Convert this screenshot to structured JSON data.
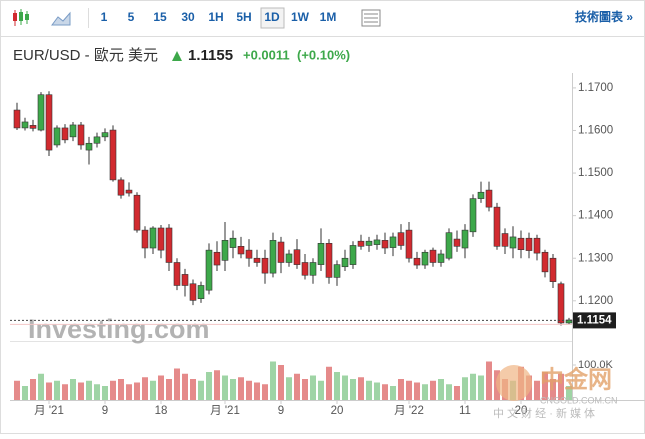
{
  "toolbar": {
    "buttons": [
      "1",
      "5",
      "15",
      "30",
      "1H",
      "5H",
      "1D",
      "1W",
      "1M"
    ],
    "selected": "1D",
    "link": "技術圖表 »"
  },
  "header": {
    "symbol": "EUR/USD - 歐元 美元",
    "price": "1.1155",
    "change": "+0.0011",
    "change_pct": "(+0.10%)"
  },
  "watermarks": {
    "investing": "Investing.com",
    "cngold": "中金网",
    "cngold_site": "CNGOLD.COM.CN",
    "cngold_slogan": "中 文 财 经 · 新 媒 体"
  },
  "chart_data": {
    "type": "candlestick",
    "categories": [
      null,
      null,
      null,
      null,
      "月 '21",
      null,
      null,
      null,
      null,
      null,
      null,
      "9",
      null,
      null,
      null,
      null,
      null,
      null,
      "18",
      null,
      null,
      null,
      null,
      null,
      null,
      null,
      "月 '21",
      null,
      null,
      null,
      null,
      null,
      null,
      "9",
      null,
      null,
      null,
      null,
      null,
      null,
      "20",
      null,
      null,
      null,
      null,
      null,
      null,
      null,
      null,
      "月 '22",
      null,
      null,
      null,
      null,
      null,
      null,
      "11",
      null,
      null,
      null,
      null,
      null,
      null,
      "20",
      null,
      null,
      null,
      null,
      null,
      null
    ],
    "open": [
      1.1648,
      1.1606,
      1.1612,
      1.1601,
      1.1684,
      1.1566,
      1.1606,
      1.1585,
      1.1613,
      1.1554,
      1.157,
      1.1585,
      1.1601,
      1.1484,
      1.146,
      1.1448,
      1.1366,
      1.1324,
      1.1371,
      1.1371,
      1.129,
      1.1262,
      1.124,
      1.1205,
      1.1225,
      1.1314,
      1.1295,
      1.1325,
      1.1328,
      1.1319,
      1.13,
      1.13,
      1.1265,
      1.1338,
      1.129,
      1.132,
      1.129,
      1.126,
      1.1285,
      1.1335,
      1.1255,
      1.128,
      1.1285,
      1.134,
      1.133,
      1.1332,
      1.1342,
      1.1325,
      1.136,
      1.1366,
      1.13,
      1.1284,
      1.1319,
      1.129,
      1.13,
      1.1345,
      1.1324,
      1.1362,
      1.144,
      1.146,
      1.142,
      1.1358,
      1.1324,
      1.1347,
      1.1347,
      1.1347,
      1.1314,
      1.13,
      1.124,
      1.1148
    ],
    "high": [
      1.1665,
      1.163,
      1.1625,
      1.169,
      1.1692,
      1.1612,
      1.1615,
      1.162,
      1.162,
      1.1585,
      1.1595,
      1.1605,
      1.1612,
      1.149,
      1.1478,
      1.1455,
      1.1375,
      1.1375,
      1.1378,
      1.138,
      1.13,
      1.1275,
      1.125,
      1.1245,
      1.1335,
      1.134,
      1.1385,
      1.1365,
      1.135,
      1.1345,
      1.132,
      1.132,
      1.136,
      1.135,
      1.132,
      1.1345,
      1.131,
      1.13,
      1.137,
      1.1345,
      1.1295,
      1.132,
      1.134,
      1.1355,
      1.135,
      1.1355,
      1.136,
      1.136,
      1.138,
      1.1385,
      1.1315,
      1.132,
      1.1325,
      1.132,
      1.137,
      1.1365,
      1.138,
      1.145,
      1.148,
      1.148,
      1.143,
      1.137,
      1.1375,
      1.1365,
      1.136,
      1.1355,
      1.132,
      1.131,
      1.1245,
      1.116
    ],
    "low": [
      1.1601,
      1.16,
      1.1598,
      1.1598,
      1.154,
      1.156,
      1.157,
      1.1575,
      1.1555,
      1.152,
      1.156,
      1.1575,
      1.148,
      1.144,
      1.1445,
      1.136,
      1.13,
      1.131,
      1.13,
      1.127,
      1.1225,
      1.121,
      1.119,
      1.1195,
      1.1215,
      1.127,
      1.127,
      1.13,
      1.13,
      1.128,
      1.128,
      1.124,
      1.1255,
      1.1265,
      1.128,
      1.1275,
      1.125,
      1.124,
      1.127,
      1.124,
      1.1235,
      1.127,
      1.1275,
      1.132,
      1.1315,
      1.132,
      1.131,
      1.1305,
      1.132,
      1.129,
      1.1275,
      1.1275,
      1.128,
      1.128,
      1.1295,
      1.1315,
      1.13,
      1.135,
      1.143,
      1.141,
      1.132,
      1.131,
      1.13,
      1.13,
      1.13,
      1.1295,
      1.1255,
      1.123,
      1.1142,
      1.1145
    ],
    "close": [
      1.1606,
      1.162,
      1.1605,
      1.1684,
      1.1554,
      1.1606,
      1.1578,
      1.1613,
      1.1566,
      1.157,
      1.1585,
      1.1595,
      1.1484,
      1.1448,
      1.1453,
      1.1366,
      1.1324,
      1.1371,
      1.1319,
      1.129,
      1.1236,
      1.1236,
      1.1201,
      1.1236,
      1.1319,
      1.1284,
      1.1342,
      1.1347,
      1.131,
      1.13,
      1.129,
      1.1265,
      1.1342,
      1.129,
      1.131,
      1.1285,
      1.126,
      1.129,
      1.1335,
      1.1255,
      1.1285,
      1.13,
      1.133,
      1.1328,
      1.134,
      1.1343,
      1.1324,
      1.135,
      1.133,
      1.13,
      1.1284,
      1.1314,
      1.129,
      1.131,
      1.136,
      1.1328,
      1.1366,
      1.144,
      1.1455,
      1.142,
      1.1328,
      1.1328,
      1.135,
      1.132,
      1.1318,
      1.1312,
      1.1268,
      1.1245,
      1.1148,
      1.1155
    ],
    "volume": [
      55000,
      40000,
      60000,
      75000,
      50000,
      55000,
      45000,
      60000,
      50000,
      55000,
      45000,
      40000,
      55000,
      60000,
      45000,
      50000,
      65000,
      55000,
      70000,
      60000,
      90000,
      75000,
      60000,
      55000,
      80000,
      85000,
      70000,
      60000,
      65000,
      55000,
      50000,
      45000,
      110000,
      100000,
      65000,
      75000,
      60000,
      70000,
      55000,
      95000,
      80000,
      70000,
      60000,
      65000,
      55000,
      50000,
      45000,
      40000,
      60000,
      55000,
      50000,
      45000,
      55000,
      60000,
      45000,
      40000,
      65000,
      75000,
      70000,
      110000,
      85000,
      60000,
      55000,
      95000,
      70000,
      55000,
      80000,
      60000,
      75000,
      40000
    ],
    "up_color": "#3da84a",
    "down_color": "#d12a2f",
    "volume_up_color": "#9fd4a5",
    "volume_down_color": "#e58a8a",
    "ylim": [
      1.1115,
      1.1735
    ],
    "yticks": [
      {
        "value": 1.12,
        "label": "1.1200"
      },
      {
        "value": 1.13,
        "label": "1.1300"
      },
      {
        "value": 1.14,
        "label": "1.1400"
      },
      {
        "value": 1.15,
        "label": "1.1500"
      },
      {
        "value": 1.16,
        "label": "1.1600"
      },
      {
        "value": 1.17,
        "label": "1.1700"
      }
    ],
    "last_price": 1.1154,
    "volume_ylim": [
      0,
      160000
    ],
    "volume_yticks": [
      {
        "value": 100000,
        "label": "100.0K"
      }
    ],
    "grid": false
  }
}
